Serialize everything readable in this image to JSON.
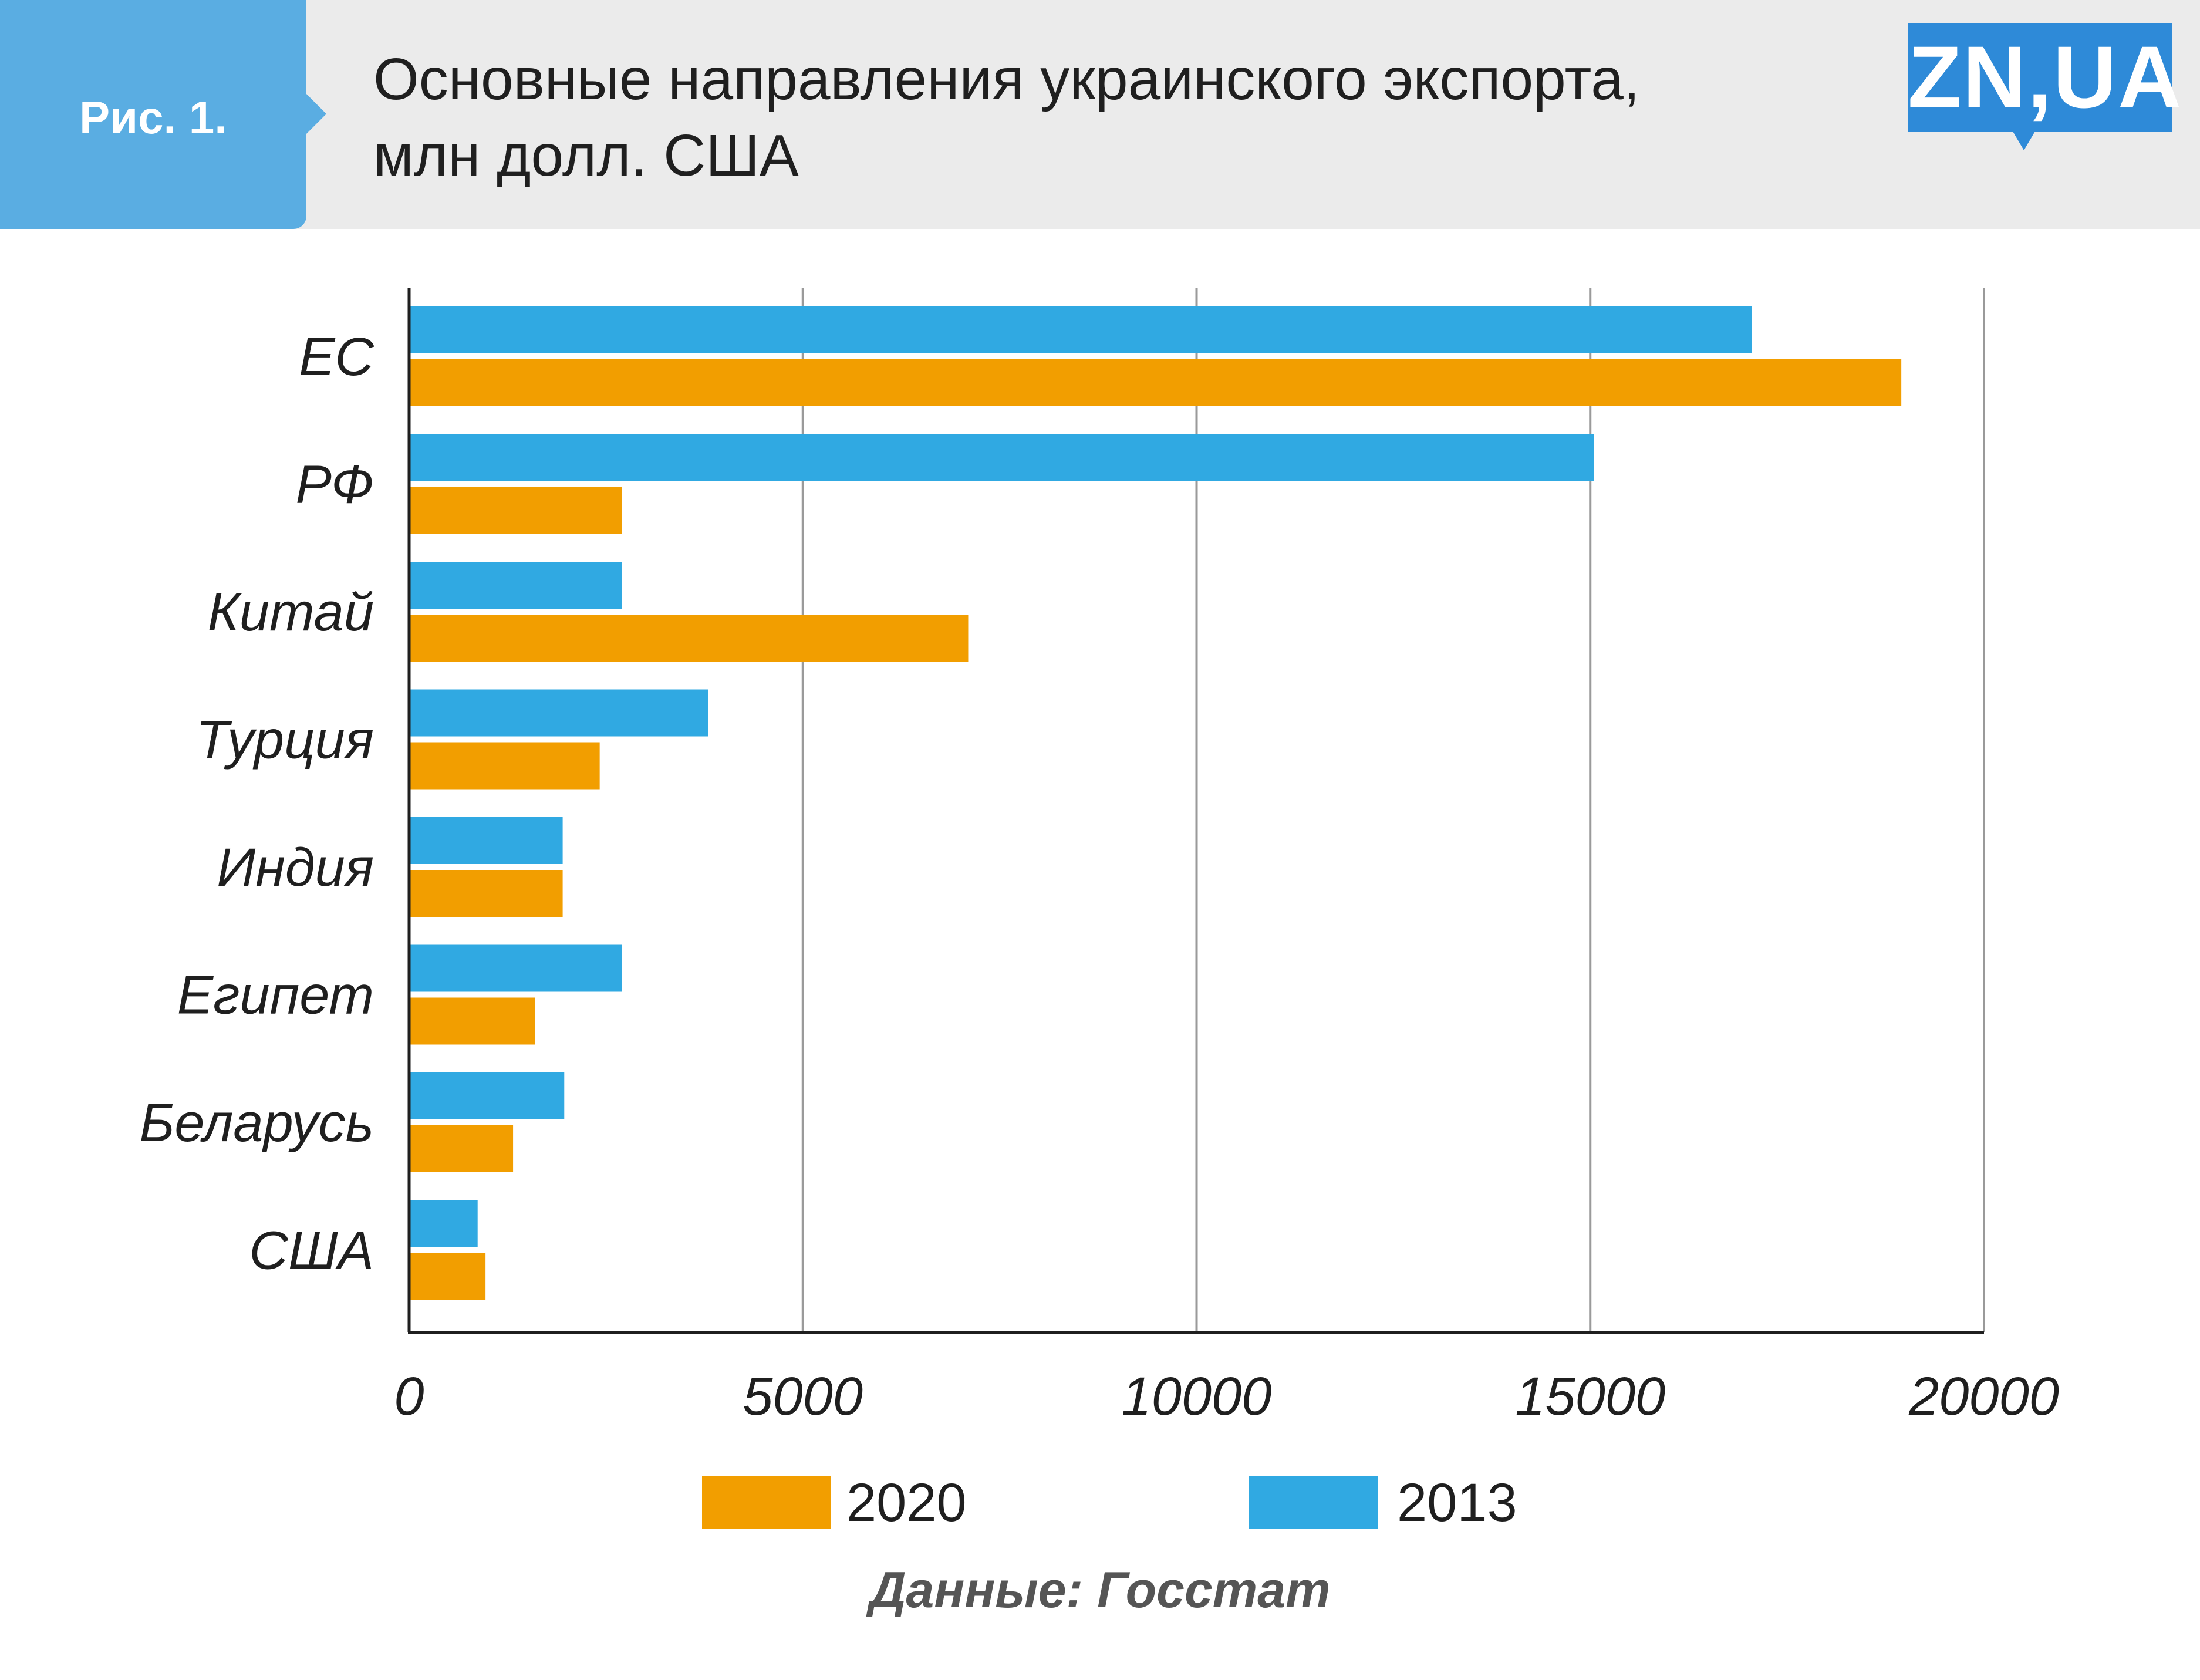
{
  "header": {
    "figure_label": "Рис. 1.",
    "title_line1": "Основные направления украинского экспорта,",
    "title_line2": "млн долл. США",
    "logo": "ZN,UA"
  },
  "colors": {
    "header_bg": "#ebebeb",
    "tab": "#5aade2",
    "logo": "#2e8ad8",
    "series_2013": "#30a9e2",
    "series_2020": "#f29e00"
  },
  "chart_data": {
    "type": "bar",
    "orientation": "horizontal",
    "categories": [
      "ЕС",
      "РФ",
      "Китай",
      "Турция",
      "Индия",
      "Египет",
      "Беларусь",
      "США"
    ],
    "series": [
      {
        "name": "2013",
        "color": "#30a9e2",
        "values": [
          17050,
          15050,
          2700,
          3800,
          1950,
          2700,
          1970,
          870
        ]
      },
      {
        "name": "2020",
        "color": "#f29e00",
        "values": [
          18950,
          2700,
          7100,
          2420,
          1950,
          1600,
          1320,
          970
        ]
      }
    ],
    "xlim": [
      0,
      20000
    ],
    "xticks": [
      "0",
      "5000",
      "10000",
      "15000",
      "20000"
    ],
    "grid": "vertical",
    "legend": {
      "position": "bottom",
      "items": [
        "2020",
        "2013"
      ]
    }
  },
  "source": "Данные: Госстат"
}
